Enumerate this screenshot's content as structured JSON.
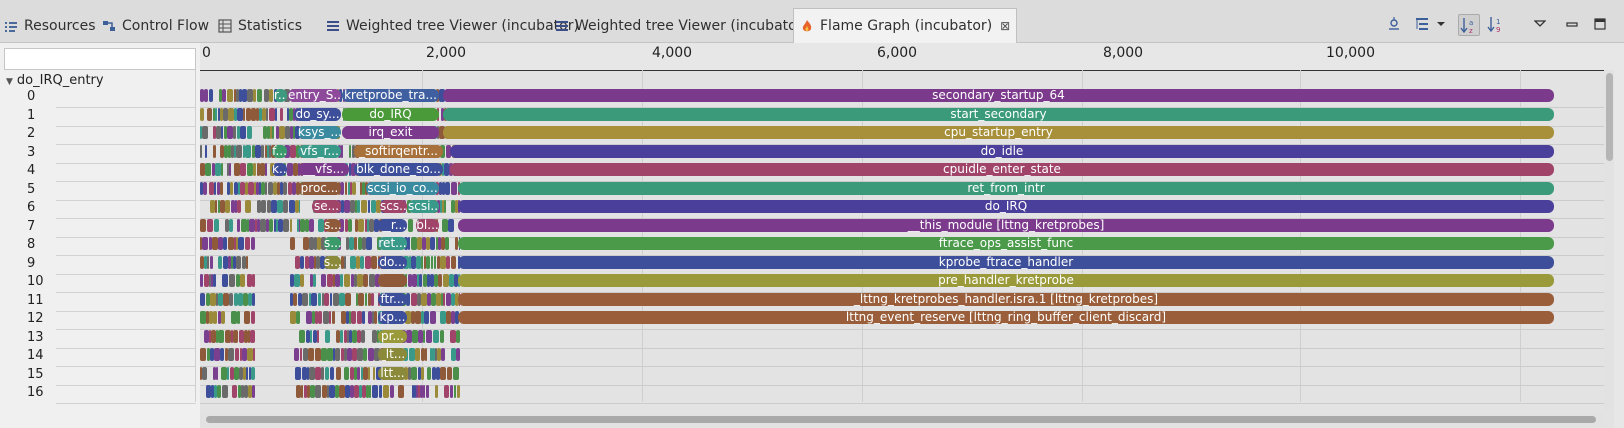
{
  "tabs": [
    {
      "label": "Resources",
      "icon": "resources-icon",
      "x": 4
    },
    {
      "label": "Control Flow",
      "icon": "control-flow-icon",
      "x": 102
    },
    {
      "label": "Statistics",
      "icon": "statistics-icon",
      "x": 218
    },
    {
      "label": "Weighted tree Viewer (incubator)",
      "icon": "tree-viewer-icon",
      "x": 326
    },
    {
      "label": "Weighted tree Viewer (incubator)",
      "icon": "tree-viewer-icon",
      "x": 555
    },
    {
      "label": "Flame Graph (incubator)",
      "icon": "flame-icon",
      "x": 793,
      "active": true
    }
  ],
  "toolbar": [
    "timeline-icon",
    "layout-icon",
    "dropdown-arrow-icon",
    "sort-alpha-icon",
    "sort-numeric-icon",
    "view-menu-icon",
    "minimize-icon",
    "maximize-icon"
  ],
  "tree": {
    "root": "do_IRQ_entry",
    "rows": [
      "0",
      "1",
      "2",
      "3",
      "4",
      "5",
      "6",
      "7",
      "8",
      "9",
      "10",
      "11",
      "12",
      "13",
      "14",
      "15",
      "16"
    ]
  },
  "ruler": {
    "ticks": [
      "0",
      "2,000",
      "4,000",
      "6,000",
      "8,000",
      "10,000"
    ]
  },
  "palette": [
    "#7a3f8f",
    "#4a8f4a",
    "#3d4f9a",
    "#9a8a3a",
    "#8f5a3a",
    "#3a9a8a",
    "#a0446a",
    "#6a6a6a"
  ],
  "flame": {
    "rows": [
      {
        "depth": 0,
        "labels": {
          "r...": "#3d9a7e",
          "entry_S...": "#8d4a9a",
          "kretprobe_tra...": "#3f5fa0"
        },
        "main": "secondary_startup_64",
        "main_color": "#7c3a8c"
      },
      {
        "depth": 1,
        "labels": {
          "do_sy...": "#3d4f9a",
          "do_IRQ": "#4a9a3a"
        },
        "main": "start_secondary",
        "main_color": "#3a9a7a"
      },
      {
        "depth": 2,
        "labels": {
          "ksys_...": "#3a8aa0",
          "irq_exit": "#7c3a8c"
        },
        "main": "cpu_startup_entry",
        "main_color": "#a8903a"
      },
      {
        "depth": 3,
        "labels": {
          "f...": "#3a9a6a",
          "vfs_r...": "#3a9a8a",
          "_softirqentr...": "#a8703a"
        },
        "main": "do_idle",
        "main_color": "#4a3f9a"
      },
      {
        "depth": 4,
        "labels": {
          "k...": "#3d4f9a",
          "__vfs...": "#7c3a8c",
          "blk_done_so...": "#3d4f9a"
        },
        "main": "cpuidle_enter_state",
        "main_color": "#a0446a"
      },
      {
        "depth": 5,
        "labels": {
          "proc...": "#8f5a3a",
          "scsi_io_co...": "#3a8aa0"
        },
        "main": "ret_from_intr",
        "main_color": "#3a9a7a"
      },
      {
        "depth": 6,
        "labels": {
          "se...": "#a0446a",
          "scs...": "#a0446a",
          "scsi...": "#3a9a8a"
        },
        "main": "do_IRQ",
        "main_color": "#4a3f9a"
      },
      {
        "depth": 7,
        "labels": {
          "s...": "#8f5a3a",
          "__r...": "#3d4f9a",
          "bl...": "#a0446a"
        },
        "main": "__this_module [lttng_kretprobes]",
        "main_color": "#7c3a8c"
      },
      {
        "depth": 8,
        "labels": {
          "s...": "#3a9a6a",
          "ret...": "#3a9a8a"
        },
        "main": "ftrace_ops_assist_func",
        "main_color": "#4a9a4a"
      },
      {
        "depth": 9,
        "labels": {
          "s...": "#8a8a3a",
          "do...": "#3d4f9a"
        },
        "main": "kprobe_ftrace_handler",
        "main_color": "#3d4f9a"
      },
      {
        "depth": 10,
        "labels": {
          "": "#8f5a3a"
        },
        "main": "pre_handler_kretprobe",
        "main_color": "#9a9a3a"
      },
      {
        "depth": 11,
        "labels": {
          "ftr...": "#3d4f9a"
        },
        "main": "_lttng_kretprobes_handler.isra.1    [lttng_kretprobes]",
        "main_color": "#9a5e3a"
      },
      {
        "depth": 12,
        "labels": {
          "kp...": "#3d4f9a"
        },
        "main": "lttng_event_reserve      [lttng_ring_buffer_client_discard]",
        "main_color": "#9a5e3a"
      },
      {
        "depth": 13,
        "labels": {
          "pr...": "#9a9a3a"
        },
        "main": ""
      },
      {
        "depth": 14,
        "labels": {
          "_lt...": "#8a8a3a"
        },
        "main": ""
      },
      {
        "depth": 15,
        "labels": {
          "ltt...": "#8a8a3a"
        },
        "main": ""
      },
      {
        "depth": 16,
        "labels": {},
        "main": ""
      }
    ]
  }
}
